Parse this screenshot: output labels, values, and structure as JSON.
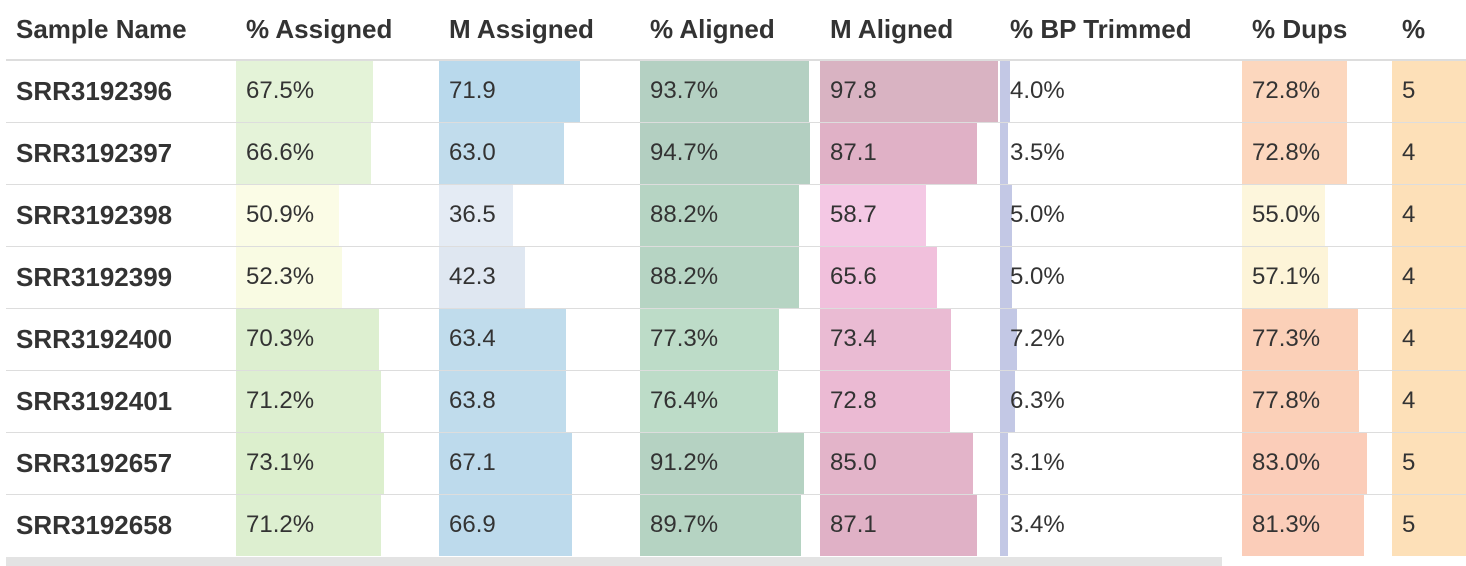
{
  "table": {
    "headers": [
      {
        "key": "sample",
        "label": "Sample Name"
      },
      {
        "key": "pct_assigned",
        "label": "% Assigned",
        "max": 100,
        "color": "#d5ecc2"
      },
      {
        "key": "m_assigned",
        "label": "M Assigned",
        "max": 100,
        "color": "#a8cde5"
      },
      {
        "key": "pct_aligned",
        "label": "% Aligned",
        "max": 100,
        "color": "#a7cbb8"
      },
      {
        "key": "m_aligned",
        "label": "M Aligned",
        "max": 100,
        "color": "#dbb0bd"
      },
      {
        "key": "pct_bp_trimmed",
        "label": "% BP Trimmed",
        "max": 100,
        "color": "#b8c0e0"
      },
      {
        "key": "pct_dups",
        "label": "% Dups",
        "max": 100,
        "color": "#f9c7a6"
      },
      {
        "key": "extra",
        "label": "%",
        "max": 100,
        "color": "#fcd0a0"
      }
    ],
    "rows": [
      {
        "sample": "SRR3192396",
        "cells": [
          {
            "v": "67.5%",
            "f": 0.675,
            "c": "#e4f3d8"
          },
          {
            "v": "71.9",
            "f": 0.7,
            "c": "#b9d9ec"
          },
          {
            "v": "93.7%",
            "f": 0.937,
            "c": "#b4d0c2"
          },
          {
            "v": "97.8",
            "f": 0.99,
            "c": "#d9b3c2"
          },
          {
            "v": "4.0%",
            "f": 0.04,
            "c": "#c3c8e5"
          },
          {
            "v": "72.8%",
            "f": 0.7,
            "c": "#fcd7be"
          },
          {
            "v": "5",
            "f": 1.0,
            "c": "#fde0b8"
          }
        ]
      },
      {
        "sample": "SRR3192397",
        "cells": [
          {
            "v": "66.6%",
            "f": 0.666,
            "c": "#e5f3d9"
          },
          {
            "v": "63.0",
            "f": 0.62,
            "c": "#c1dcec"
          },
          {
            "v": "94.7%",
            "f": 0.947,
            "c": "#b3cfc1"
          },
          {
            "v": "87.1",
            "f": 0.87,
            "c": "#e0b1c6"
          },
          {
            "v": "3.5%",
            "f": 0.035,
            "c": "#c3c8e5"
          },
          {
            "v": "72.8%",
            "f": 0.7,
            "c": "#fcd7be"
          },
          {
            "v": "4",
            "f": 1.0,
            "c": "#fde0b8"
          }
        ]
      },
      {
        "sample": "SRR3192398",
        "cells": [
          {
            "v": "50.9%",
            "f": 0.509,
            "c": "#fbfce6"
          },
          {
            "v": "36.5",
            "f": 0.37,
            "c": "#e4ebf4"
          },
          {
            "v": "88.2%",
            "f": 0.882,
            "c": "#b6d4c3"
          },
          {
            "v": "58.7",
            "f": 0.59,
            "c": "#f4c8e4"
          },
          {
            "v": "5.0%",
            "f": 0.05,
            "c": "#c3c8e5"
          },
          {
            "v": "55.0%",
            "f": 0.55,
            "c": "#fdf6dc"
          },
          {
            "v": "4",
            "f": 1.0,
            "c": "#fde0b8"
          }
        ]
      },
      {
        "sample": "SRR3192399",
        "cells": [
          {
            "v": "52.3%",
            "f": 0.523,
            "c": "#f9fbe3"
          },
          {
            "v": "42.3",
            "f": 0.43,
            "c": "#dfe7f1"
          },
          {
            "v": "88.2%",
            "f": 0.882,
            "c": "#b6d4c3"
          },
          {
            "v": "65.6",
            "f": 0.65,
            "c": "#f1c0dc"
          },
          {
            "v": "5.0%",
            "f": 0.05,
            "c": "#c3c8e5"
          },
          {
            "v": "57.1%",
            "f": 0.57,
            "c": "#fdf4d8"
          },
          {
            "v": "4",
            "f": 1.0,
            "c": "#fde0b8"
          }
        ]
      },
      {
        "sample": "SRR3192400",
        "cells": [
          {
            "v": "70.3%",
            "f": 0.703,
            "c": "#ddefd0"
          },
          {
            "v": "63.4",
            "f": 0.63,
            "c": "#c0dcec"
          },
          {
            "v": "77.3%",
            "f": 0.773,
            "c": "#bddcc8"
          },
          {
            "v": "73.4",
            "f": 0.73,
            "c": "#eabbd3"
          },
          {
            "v": "7.2%",
            "f": 0.072,
            "c": "#c3c8e5"
          },
          {
            "v": "77.3%",
            "f": 0.77,
            "c": "#fbd0b8"
          },
          {
            "v": "4",
            "f": 1.0,
            "c": "#fde0b8"
          }
        ]
      },
      {
        "sample": "SRR3192401",
        "cells": [
          {
            "v": "71.2%",
            "f": 0.712,
            "c": "#ddefd0"
          },
          {
            "v": "63.8",
            "f": 0.63,
            "c": "#c0dcec"
          },
          {
            "v": "76.4%",
            "f": 0.764,
            "c": "#bddcc8"
          },
          {
            "v": "72.8",
            "f": 0.72,
            "c": "#ebbad3"
          },
          {
            "v": "6.3%",
            "f": 0.063,
            "c": "#c3c8e5"
          },
          {
            "v": "77.8%",
            "f": 0.78,
            "c": "#fbd0b8"
          },
          {
            "v": "4",
            "f": 1.0,
            "c": "#fde0b8"
          }
        ]
      },
      {
        "sample": "SRR3192657",
        "cells": [
          {
            "v": "73.1%",
            "f": 0.731,
            "c": "#dcefcd"
          },
          {
            "v": "67.1",
            "f": 0.66,
            "c": "#bddaec"
          },
          {
            "v": "91.2%",
            "f": 0.912,
            "c": "#b5d2c2"
          },
          {
            "v": "85.0",
            "f": 0.85,
            "c": "#e3b4c9"
          },
          {
            "v": "3.1%",
            "f": 0.031,
            "c": "#c3c8e5"
          },
          {
            "v": "83.0%",
            "f": 0.83,
            "c": "#fbcdb9"
          },
          {
            "v": "5",
            "f": 1.0,
            "c": "#fde0b8"
          }
        ]
      },
      {
        "sample": "SRR3192658",
        "cells": [
          {
            "v": "71.2%",
            "f": 0.712,
            "c": "#ddefd0"
          },
          {
            "v": "66.9",
            "f": 0.66,
            "c": "#bddaec"
          },
          {
            "v": "89.7%",
            "f": 0.897,
            "c": "#b5d3c2"
          },
          {
            "v": "87.1",
            "f": 0.87,
            "c": "#e0b1c6"
          },
          {
            "v": "3.4%",
            "f": 0.034,
            "c": "#c3c8e5"
          },
          {
            "v": "81.3%",
            "f": 0.81,
            "c": "#fbcdb9"
          },
          {
            "v": "5",
            "f": 1.0,
            "c": "#fde0b8"
          }
        ]
      }
    ]
  }
}
